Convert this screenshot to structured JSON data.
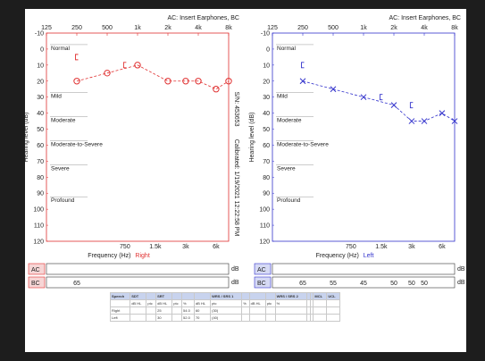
{
  "header": {
    "left": "AC: Insert Earphones, BC",
    "right": "AC: Insert Earphones, BC"
  },
  "side_labels": {
    "serial": "S/N: 453653",
    "calibrated": "Calibrated: 1/19/2021 12:22:58 PM"
  },
  "ylabel": "Hearing level (dB)",
  "xlabel_left": {
    "text": "Frequency (Hz)",
    "ear": "Right"
  },
  "xlabel_right": {
    "text": "Frequency (Hz)",
    "ear": "Left"
  },
  "severity_labels": [
    {
      "label": "Normal",
      "db": 0
    },
    {
      "label": "Mild",
      "db": 30
    },
    {
      "label": "Moderate",
      "db": 45
    },
    {
      "label": "Moderate-to-Severe",
      "db": 60
    },
    {
      "label": "Severe",
      "db": 75
    },
    {
      "label": "Profound",
      "db": 95
    }
  ],
  "masking_rows": {
    "ac_label": "AC",
    "bc_label": "BC",
    "unit": "dB",
    "right_bc": [
      {
        "freq": 250,
        "value": "65"
      }
    ],
    "left_bc": [
      {
        "freq": 250,
        "value": "65"
      },
      {
        "freq": 500,
        "value": "55"
      },
      {
        "freq": 1000,
        "value": "45"
      },
      {
        "freq": 2000,
        "value": "50"
      },
      {
        "freq": 3000,
        "value": "50"
      },
      {
        "freq": 4000,
        "value": "50"
      }
    ]
  },
  "chart_data": [
    {
      "type": "line",
      "title": "Right",
      "xlabel": "Frequency (Hz)",
      "ylabel": "Hearing level (dB)",
      "x_scale": "log",
      "top_ticks": [
        "125",
        "250",
        "500",
        "1k",
        "2k",
        "4k",
        "8k"
      ],
      "bottom_ticks": [
        "750",
        "1.5k",
        "3k",
        "6k"
      ],
      "y_ticks": [
        "-10",
        "0",
        "10",
        "20",
        "30",
        "40",
        "50",
        "60",
        "70",
        "80",
        "90",
        "100",
        "110",
        "120"
      ],
      "ylim": [
        -10,
        120
      ],
      "grid": false,
      "color": "#e03030",
      "series": [
        {
          "symbol": "circle",
          "x": [
            250,
            500,
            1000,
            2000,
            3000,
            4000,
            6000,
            8000
          ],
          "y": [
            20,
            15,
            10,
            20,
            20,
            20,
            25,
            20
          ]
        },
        {
          "symbol": "bracket",
          "x": [
            250,
            750
          ],
          "y": [
            5,
            10
          ]
        }
      ]
    },
    {
      "type": "line",
      "title": "Left",
      "xlabel": "Frequency (Hz)",
      "ylabel": "Hearing level (dB)",
      "x_scale": "log",
      "top_ticks": [
        "125",
        "250",
        "500",
        "1k",
        "2k",
        "4k",
        "8k"
      ],
      "bottom_ticks": [
        "750",
        "1.5k",
        "3k",
        "6k"
      ],
      "y_ticks": [
        "-10",
        "0",
        "10",
        "20",
        "30",
        "40",
        "50",
        "60",
        "70",
        "80",
        "90",
        "100",
        "110",
        "120"
      ],
      "ylim": [
        -10,
        120
      ],
      "grid": false,
      "color": "#3333cc",
      "series": [
        {
          "symbol": "x",
          "x": [
            250,
            500,
            1000,
            2000,
            3000,
            4000,
            6000,
            8000
          ],
          "y": [
            20,
            25,
            30,
            35,
            45,
            45,
            40,
            45
          ]
        },
        {
          "symbol": "bracket",
          "x": [
            250,
            1500,
            3000
          ],
          "y": [
            10,
            30,
            35
          ]
        }
      ]
    }
  ],
  "speech_table": {
    "header": [
      "Speech",
      "SDT",
      "",
      "SRT",
      "",
      "",
      "",
      "WRS / SRS 1",
      "",
      "",
      "",
      "WRS / SRS 2",
      "",
      "",
      "MCL",
      "UCL"
    ],
    "subheader": [
      "",
      "dB HL",
      "ptc",
      "dB HL",
      "ptc",
      "%",
      "dB HL",
      "ptc",
      "%",
      "dB HL",
      "ptc",
      "%",
      "",
      "",
      "",
      ""
    ],
    "rows": [
      [
        "Right",
        "",
        "",
        "25",
        "",
        "54.0",
        "60",
        "(30)",
        "",
        "",
        "",
        "",
        "",
        "",
        "",
        ""
      ],
      [
        "Left",
        "",
        "",
        "30",
        "",
        "52.0",
        "70",
        "(40)",
        "",
        "",
        "",
        "",
        "",
        "",
        "",
        ""
      ]
    ]
  }
}
